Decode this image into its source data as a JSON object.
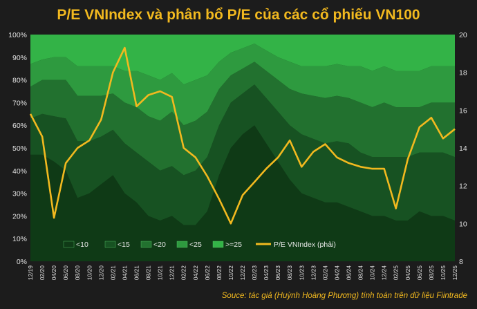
{
  "title": "P/E VNIndex và phân bổ P/E của các cổ phiếu VN100",
  "source": "Souce: tác giả (Huỳnh Hoàng Phương) tính toán trên dữ liệu Fiintrade",
  "chart_data": {
    "type": "area",
    "left_axis": {
      "unit": "%",
      "range": [
        0,
        100
      ],
      "ticks": [
        "0%",
        "10%",
        "20%",
        "30%",
        "40%",
        "50%",
        "60%",
        "70%",
        "80%",
        "90%",
        "100%"
      ]
    },
    "right_axis": {
      "range": [
        8,
        20
      ],
      "ticks": [
        "8",
        "10",
        "12",
        "14",
        "16",
        "18",
        "20"
      ]
    },
    "x_labels": [
      "12/19",
      "02/20",
      "04/20",
      "06/20",
      "08/20",
      "10/20",
      "12/20",
      "02/21",
      "04/21",
      "06/21",
      "08/21",
      "10/21",
      "12/21",
      "02/22",
      "04/22",
      "06/22",
      "08/22",
      "10/22",
      "12/22",
      "02/23",
      "04/23",
      "06/23",
      "08/23",
      "10/23",
      "12/23",
      "02/24",
      "04/24",
      "06/24",
      "08/24",
      "10/24",
      "12/24",
      "02/25",
      "04/25",
      "06/25",
      "08/25",
      "10/25",
      "12/25"
    ],
    "stack_series": [
      {
        "name": "<10",
        "color": "#0f3a16",
        "values": [
          47,
          47,
          44,
          40,
          28,
          30,
          34,
          38,
          30,
          26,
          20,
          18,
          20,
          16,
          16,
          22,
          38,
          50,
          56,
          60,
          52,
          44,
          36,
          30,
          28,
          26,
          26,
          24,
          22,
          20,
          20,
          18,
          18,
          22,
          20,
          20,
          18
        ]
      },
      {
        "name": "<15",
        "color": "#175222",
        "values": [
          16,
          18,
          20,
          23,
          25,
          23,
          21,
          20,
          22,
          22,
          24,
          22,
          22,
          22,
          24,
          24,
          22,
          20,
          18,
          18,
          20,
          22,
          24,
          26,
          26,
          26,
          27,
          28,
          26,
          26,
          26,
          28,
          28,
          26,
          28,
          28,
          28
        ]
      },
      {
        "name": "<20",
        "color": "#22712f",
        "values": [
          14,
          15,
          16,
          17,
          20,
          20,
          18,
          16,
          18,
          20,
          20,
          22,
          24,
          22,
          22,
          20,
          16,
          12,
          11,
          10,
          12,
          14,
          16,
          18,
          19,
          20,
          20,
          20,
          22,
          22,
          24,
          22,
          22,
          20,
          22,
          22,
          24
        ]
      },
      {
        "name": "<25",
        "color": "#2e9a3f",
        "values": [
          10,
          9,
          10,
          10,
          13,
          13,
          13,
          12,
          14,
          16,
          18,
          18,
          17,
          18,
          18,
          16,
          12,
          10,
          9,
          8,
          9,
          10,
          12,
          12,
          13,
          14,
          14,
          14,
          16,
          16,
          16,
          16,
          16,
          16,
          16,
          16,
          16
        ]
      },
      {
        "name": ">=25",
        "color": "#33b347",
        "values": [
          13,
          11,
          10,
          10,
          14,
          14,
          14,
          14,
          16,
          16,
          18,
          20,
          17,
          22,
          20,
          18,
          12,
          8,
          6,
          4,
          7,
          10,
          12,
          14,
          14,
          14,
          13,
          14,
          14,
          16,
          14,
          16,
          16,
          16,
          14,
          14,
          14
        ]
      }
    ],
    "line_series": {
      "name": "P/E VNIndex (phải)",
      "color": "#f2b91f",
      "axis": "right",
      "values": [
        15.8,
        14.6,
        10.3,
        13.2,
        14.0,
        14.4,
        15.5,
        18.0,
        19.3,
        16.2,
        16.8,
        17.0,
        16.7,
        14.0,
        13.5,
        12.5,
        11.3,
        10.0,
        11.5,
        12.2,
        12.9,
        13.5,
        14.4,
        13.0,
        13.8,
        14.2,
        13.5,
        13.2,
        13.0,
        12.9,
        12.9,
        10.8,
        13.4,
        15.1,
        15.6,
        14.5,
        15.0
      ]
    },
    "legend": [
      "<10",
      "<15",
      "<20",
      "<25",
      ">=25",
      "P/E VNIndex (phải)"
    ],
    "legend_position": "bottom-inside"
  }
}
